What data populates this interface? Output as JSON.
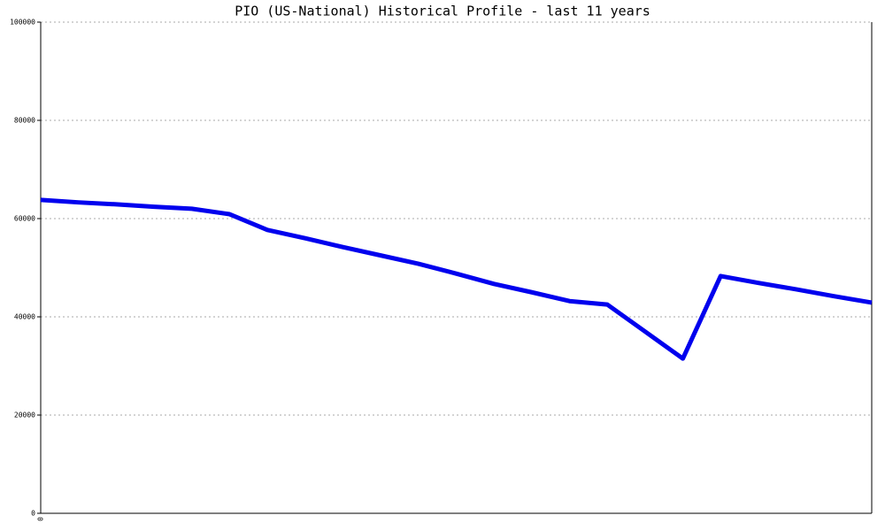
{
  "chart_data": {
    "type": "line",
    "title": "PIO (US-National) Historical Profile - last 11 years",
    "categories": [
      "0",
      null,
      null,
      null,
      null,
      null,
      null,
      null,
      null,
      null,
      null,
      null,
      null,
      null,
      null,
      null,
      null,
      null,
      null,
      null,
      null,
      null,
      null
    ],
    "series": [
      {
        "color": "#0000ee",
        "values": [
          63800,
          63300,
          62900,
          62400,
          62000,
          60900,
          57700,
          56000,
          54200,
          52500,
          50800,
          48800,
          46700,
          45000,
          43200,
          42500,
          37000,
          31500,
          48300,
          46900,
          45600,
          44200,
          42900
        ]
      }
    ],
    "ylim": [
      0,
      100000
    ],
    "yticks": [
      0,
      20000,
      40000,
      60000,
      80000,
      100000
    ],
    "grid": true
  }
}
